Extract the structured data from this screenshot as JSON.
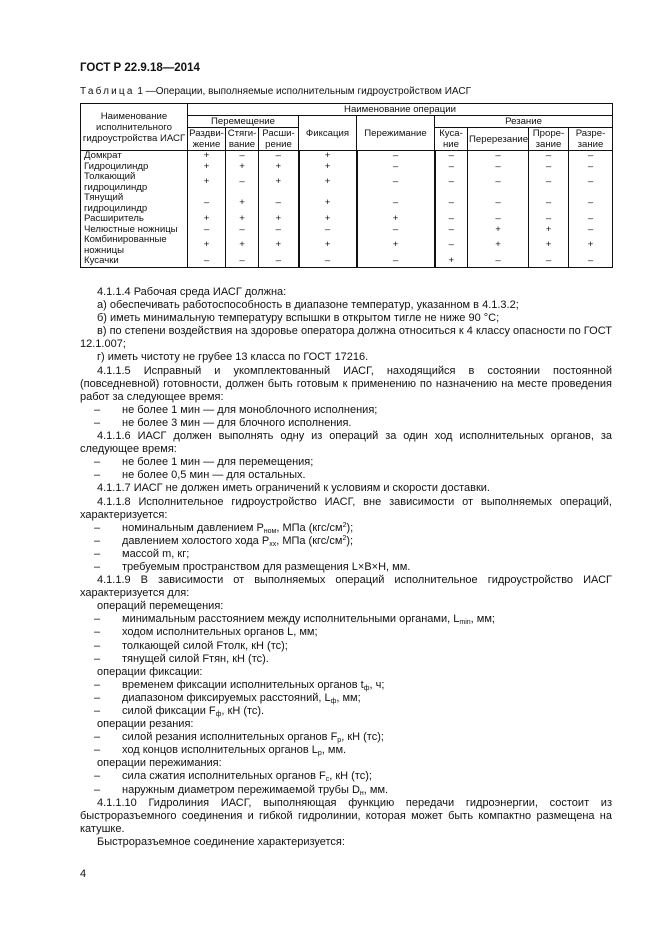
{
  "header": {
    "doc_id": "ГОСТ Р 22.9.18—2014"
  },
  "table": {
    "caption_word": "Таблица",
    "caption_num": "1",
    "caption_text": "—Операции, выполняемые исполнительным гидроустройством ИАСГ",
    "col_name": "Наименование исполнительного гидроустройства ИАСГ",
    "col_ops": "Наименование операции",
    "group_move": "Перемещение",
    "group_cut": "Резание",
    "sub_headers": [
      "Раздви-жение",
      "Стяги-вание",
      "Расши-рение",
      "Фиксация",
      "Пережимание",
      "Куса-ние",
      "Перерезание",
      "Проре-зание",
      "Разре-зание"
    ],
    "rows": [
      {
        "name": "Домкрат",
        "marks": [
          "+",
          "–",
          "–",
          "+",
          "–",
          "–",
          "–",
          "–",
          "–"
        ]
      },
      {
        "name": "Гидроцилиндр",
        "marks": [
          "+",
          "+",
          "+",
          "+",
          "–",
          "–",
          "–",
          "–",
          "–"
        ]
      },
      {
        "name": "Толкающий гидроцилиндр",
        "marks": [
          "+",
          "–",
          "+",
          "+",
          "–",
          "–",
          "–",
          "–",
          "–"
        ]
      },
      {
        "name": "Тянущий гидроцилиндр",
        "marks": [
          "–",
          "+",
          "–",
          "+",
          "–",
          "–",
          "–",
          "–",
          "–"
        ]
      },
      {
        "name": "Расширитель",
        "marks": [
          "+",
          "+",
          "+",
          "+",
          "+",
          "–",
          "–",
          "–",
          "–"
        ]
      },
      {
        "name": "Челюстные ножницы",
        "marks": [
          "–",
          "–",
          "–",
          "–",
          "–",
          "–",
          "+",
          "+",
          "–"
        ]
      },
      {
        "name": "Комбинированные ножницы",
        "marks": [
          "+",
          "+",
          "+",
          "+",
          "+",
          "–",
          "+",
          "+",
          "+"
        ]
      },
      {
        "name": "Кусачки",
        "marks": [
          "–",
          "–",
          "–",
          "–",
          "–",
          "+",
          "–",
          "–",
          "–"
        ]
      }
    ]
  },
  "body": [
    {
      "k": "ind",
      "parts": [
        "4.1.1.4 Рабочая среда ИАСГ должна:"
      ]
    },
    {
      "k": "ind",
      "parts": [
        "а) обеспечивать работоспособность в диапазоне температур, указанном в 4.1.3.2;"
      ]
    },
    {
      "k": "ind",
      "parts": [
        "б) иметь минимальную температуру вспышки в открытом тигле не ниже 90 °С;"
      ]
    },
    {
      "k": "p",
      "parts": [
        "в) по степени воздействия на здоровье оператора должна относиться к 4 классу опасности по ГОСТ 12.1.007;"
      ]
    },
    {
      "k": "ind",
      "parts": [
        "г) иметь чистоту не грубее 13 класса по ГОСТ 17216."
      ]
    },
    {
      "k": "p",
      "parts": [
        "4.1.1.5 Исправный и укомплектованный ИАСГ, находящийся в состоянии постоянной (повседневной) готовности, должен быть готовым к применению по назначению на месте проведения работ за следующее время:"
      ]
    },
    {
      "k": "dash",
      "parts": [
        "не более 1 мин — для моноблочного исполнения;"
      ]
    },
    {
      "k": "dash",
      "parts": [
        "не более 3 мин — для блочного исполнения."
      ]
    },
    {
      "k": "p",
      "parts": [
        "4.1.1.6 ИАСГ должен выполнять одну из операций за один ход исполнительных органов, за следующее время:"
      ]
    },
    {
      "k": "dash",
      "parts": [
        "не более 1 мин — для перемещения;"
      ]
    },
    {
      "k": "dash",
      "parts": [
        "не более 0,5 мин — для остальных."
      ]
    },
    {
      "k": "ind",
      "parts": [
        "4.1.1.7 ИАСГ не должен иметь ограничений к условиям и скорости доставки."
      ]
    },
    {
      "k": "p",
      "parts": [
        "4.1.1.8 Исполнительное гидроустройство ИАСГ, вне зависимости от выполняемых операций, характеризуется:"
      ]
    },
    {
      "k": "dash",
      "parts": [
        "номинальным давлением Р",
        {
          "sub": "ном"
        },
        ", МПа (кгс/см",
        {
          "sup": "2"
        },
        ");"
      ]
    },
    {
      "k": "dash",
      "parts": [
        "давлением холостого хода Р",
        {
          "sub": "хх"
        },
        ", МПа (кгс/см",
        {
          "sup": "2"
        },
        ");"
      ]
    },
    {
      "k": "dash",
      "parts": [
        "массой m, кг;"
      ]
    },
    {
      "k": "dash",
      "parts": [
        "требуемым пространством для размещения L×B×H, мм."
      ]
    },
    {
      "k": "p",
      "parts": [
        "4.1.1.9 В зависимости от выполняемых операций исполнительное гидроустройство ИАСГ характеризуется для:"
      ]
    },
    {
      "k": "ind",
      "parts": [
        "операций перемещения:"
      ]
    },
    {
      "k": "dash",
      "parts": [
        "минимальным расстоянием между исполнительными органами, L",
        {
          "sub": "min"
        },
        ", мм;"
      ]
    },
    {
      "k": "dash",
      "parts": [
        "ходом исполнительных органов L, мм;"
      ]
    },
    {
      "k": "dash",
      "parts": [
        "толкающей силой Fтолк, кН (тс);"
      ]
    },
    {
      "k": "dash",
      "parts": [
        "тянущей силой Fтян, кН (тс)."
      ]
    },
    {
      "k": "ind",
      "parts": [
        "операции фиксации:"
      ]
    },
    {
      "k": "dash",
      "parts": [
        "временем фиксации исполнительных органов t",
        {
          "sub": "ф"
        },
        ", ч;"
      ]
    },
    {
      "k": "dash",
      "parts": [
        "диапазоном фиксируемых расстояний, L",
        {
          "sub": "ф"
        },
        ", мм;"
      ]
    },
    {
      "k": "dash",
      "parts": [
        "силой фиксации F",
        {
          "sub": "ф"
        },
        ", кН (тс)."
      ]
    },
    {
      "k": "ind",
      "parts": [
        "операции резания:"
      ]
    },
    {
      "k": "dash",
      "parts": [
        "силой резания исполнительных органов F",
        {
          "sub": "р"
        },
        ", кН (тс);"
      ]
    },
    {
      "k": "dash",
      "parts": [
        "ход концов исполнительных органов L",
        {
          "sub": "р"
        },
        ", мм."
      ]
    },
    {
      "k": "ind",
      "parts": [
        "операции пережимания:"
      ]
    },
    {
      "k": "dash",
      "parts": [
        "сила сжатия исполнительных органов F",
        {
          "sub": "с"
        },
        ", кН (тс);"
      ]
    },
    {
      "k": "dash",
      "parts": [
        "наружным диаметром пережимаемой трубы D",
        {
          "sub": "н"
        },
        ", мм."
      ]
    },
    {
      "k": "p",
      "parts": [
        "4.1.1.10 Гидролиния ИАСГ, выполняющая функцию передачи гидроэнергии, состоит из быстроразъемного соединения и гибкой гидролинии, которая может быть компактно размещена на катушке."
      ]
    },
    {
      "k": "ind",
      "parts": [
        "Быстроразъемное соединение характеризуется:"
      ]
    }
  ],
  "footer": {
    "page_number": "4"
  }
}
